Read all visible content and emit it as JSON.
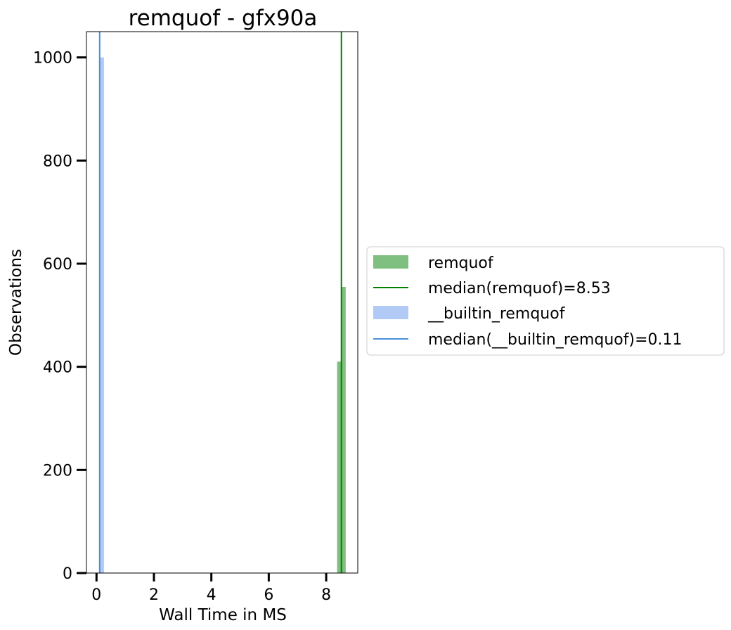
{
  "chart_data": {
    "type": "bar",
    "title": "remquof - gfx90a",
    "xlabel": "Wall Time in MS",
    "ylabel": "Observations",
    "xlim": [
      -0.35,
      9.1
    ],
    "ylim": [
      0,
      1050
    ],
    "xticks": [
      0,
      2,
      4,
      6,
      8
    ],
    "yticks": [
      0,
      200,
      400,
      600,
      800,
      1000
    ],
    "grid": false,
    "legend_position": "outside-right",
    "series": [
      {
        "name": "remquof",
        "kind": "histogram",
        "color": "#008000",
        "alpha": 0.5,
        "bins": [
          {
            "x0": 8.38,
            "x1": 8.53,
            "count": 410
          },
          {
            "x0": 8.53,
            "x1": 8.68,
            "count": 555
          }
        ]
      },
      {
        "name": "__builtin_remquof",
        "kind": "histogram",
        "color": "#6495ED",
        "alpha": 0.5,
        "bins": [
          {
            "x0": 0.09,
            "x1": 0.26,
            "count": 1000
          }
        ]
      }
    ],
    "reference_lines": [
      {
        "name": "median(remquof)=8.53",
        "x": 8.53,
        "color": "#008000"
      },
      {
        "name": "median(__builtin_remquof)=0.11",
        "x": 0.11,
        "color": "#4a90d9"
      }
    ],
    "legend": [
      {
        "label": "remquof",
        "kind": "patch",
        "color": "#008000",
        "alpha": 0.5
      },
      {
        "label": "median(remquof)=8.53",
        "kind": "line",
        "color": "#008000"
      },
      {
        "label": "__builtin_remquof",
        "kind": "patch",
        "color": "#6495ED",
        "alpha": 0.5
      },
      {
        "label": "median(__builtin_remquof)=0.11",
        "kind": "line",
        "color": "#4a90d9"
      }
    ]
  }
}
